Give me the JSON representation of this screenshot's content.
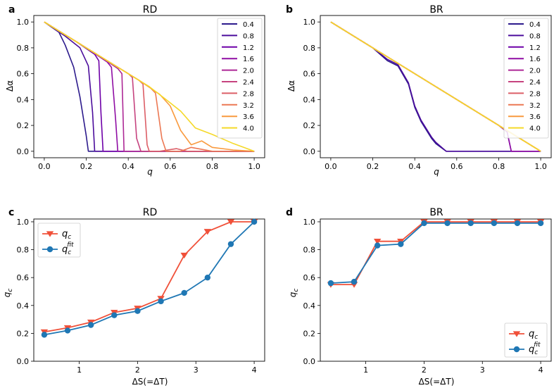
{
  "chart_data": [
    {
      "panel": "a",
      "type": "line",
      "title": "RD",
      "xlabel": "q",
      "ylabel": "Δα",
      "xlim": [
        -0.05,
        1.05
      ],
      "ylim": [
        -0.05,
        1.05
      ],
      "xticks": [
        0.0,
        0.2,
        0.4,
        0.6,
        0.8,
        1.0
      ],
      "xtick_labels": [
        "0.0",
        "0.2",
        "0.4",
        "0.6",
        "0.8",
        "1.0"
      ],
      "yticks": [
        0.0,
        0.2,
        0.4,
        0.6,
        0.8,
        1.0
      ],
      "ytick_labels": [
        "0.0",
        "0.2",
        "0.4",
        "0.6",
        "0.8",
        "1.0"
      ],
      "legend_position": "top-right",
      "series": [
        {
          "name": "0.4",
          "color": "#2c1a8c",
          "x": [
            0,
            0.07,
            0.1,
            0.14,
            0.17,
            0.2,
            0.21,
            0.25,
            0.4,
            1.0
          ],
          "y": [
            1.0,
            0.92,
            0.82,
            0.65,
            0.42,
            0.12,
            0.0,
            0.0,
            0.0,
            0.0
          ]
        },
        {
          "name": "0.8",
          "color": "#4b0c9c",
          "x": [
            0,
            0.1,
            0.17,
            0.21,
            0.23,
            0.24,
            0.3,
            1.0
          ],
          "y": [
            1.0,
            0.89,
            0.8,
            0.66,
            0.3,
            0.0,
            0.0,
            0.0
          ]
        },
        {
          "name": "1.2",
          "color": "#6e00a8",
          "x": [
            0,
            0.15,
            0.24,
            0.26,
            0.27,
            0.28,
            0.35,
            1.0
          ],
          "y": [
            1.0,
            0.85,
            0.75,
            0.7,
            0.3,
            0.0,
            0.0,
            0.0
          ]
        },
        {
          "name": "1.6",
          "color": "#8f0da4",
          "x": [
            0,
            0.2,
            0.3,
            0.32,
            0.34,
            0.35,
            0.4,
            1.0
          ],
          "y": [
            1.0,
            0.8,
            0.69,
            0.65,
            0.24,
            0.0,
            0.0,
            0.0
          ]
        },
        {
          "name": "2.0",
          "color": "#ad2896",
          "x": [
            0,
            0.25,
            0.35,
            0.37,
            0.38,
            0.45,
            1.0
          ],
          "y": [
            1.0,
            0.75,
            0.64,
            0.6,
            0.0,
            0.0,
            0.0
          ]
        },
        {
          "name": "2.4",
          "color": "#c6437f",
          "x": [
            0,
            0.3,
            0.4,
            0.42,
            0.44,
            0.46,
            0.5,
            1.0
          ],
          "y": [
            1.0,
            0.7,
            0.6,
            0.57,
            0.1,
            0.0,
            0.0,
            0.0
          ]
        },
        {
          "name": "2.8",
          "color": "#dc5e66",
          "x": [
            0,
            0.35,
            0.45,
            0.47,
            0.49,
            0.5,
            0.55,
            0.63,
            0.68,
            0.75,
            1.0
          ],
          "y": [
            1.0,
            0.65,
            0.55,
            0.52,
            0.05,
            0.0,
            0.0,
            0.02,
            0.0,
            0.0,
            0.0
          ]
        },
        {
          "name": "3.2",
          "color": "#ec7853",
          "x": [
            0,
            0.4,
            0.5,
            0.53,
            0.56,
            0.58,
            0.65,
            0.7,
            0.8,
            1.0
          ],
          "y": [
            1.0,
            0.6,
            0.5,
            0.45,
            0.1,
            0.0,
            0.0,
            0.03,
            0.0,
            0.0
          ]
        },
        {
          "name": "3.6",
          "color": "#f99a3e",
          "x": [
            0,
            0.45,
            0.55,
            0.6,
            0.65,
            0.7,
            0.75,
            0.8,
            0.9,
            1.0
          ],
          "y": [
            1.0,
            0.55,
            0.44,
            0.35,
            0.16,
            0.05,
            0.08,
            0.03,
            0.01,
            0.0
          ]
        },
        {
          "name": "4.0",
          "color": "#f5d929",
          "x": [
            0,
            0.5,
            0.58,
            0.65,
            0.72,
            0.8,
            0.9,
            1.0
          ],
          "y": [
            1.0,
            0.5,
            0.4,
            0.31,
            0.18,
            0.13,
            0.06,
            0.0
          ]
        }
      ]
    },
    {
      "panel": "b",
      "type": "line",
      "title": "BR",
      "xlabel": "q",
      "ylabel": "Δα",
      "xlim": [
        -0.05,
        1.05
      ],
      "ylim": [
        -0.05,
        1.05
      ],
      "xticks": [
        0.0,
        0.2,
        0.4,
        0.6,
        0.8,
        1.0
      ],
      "xtick_labels": [
        "0.0",
        "0.2",
        "0.4",
        "0.6",
        "0.8",
        "1.0"
      ],
      "yticks": [
        0.0,
        0.2,
        0.4,
        0.6,
        0.8,
        1.0
      ],
      "ytick_labels": [
        "0.0",
        "0.2",
        "0.4",
        "0.6",
        "0.8",
        "1.0"
      ],
      "legend_position": "top-right",
      "series": [
        {
          "name": "0.4",
          "color": "#2c1a8c",
          "x": [
            0,
            0.2,
            0.27,
            0.32,
            0.37,
            0.4,
            0.43,
            0.48,
            0.5,
            0.55,
            0.6,
            1.0
          ],
          "y": [
            1.0,
            0.8,
            0.7,
            0.66,
            0.52,
            0.34,
            0.23,
            0.1,
            0.06,
            0.0,
            0.0,
            0.0
          ]
        },
        {
          "name": "0.8",
          "color": "#4b0c9c",
          "x": [
            0,
            0.2,
            0.27,
            0.32,
            0.37,
            0.4,
            0.43,
            0.48,
            0.5,
            0.55,
            0.6,
            1.0
          ],
          "y": [
            1.0,
            0.8,
            0.71,
            0.67,
            0.53,
            0.35,
            0.24,
            0.11,
            0.07,
            0.0,
            0.0,
            0.0
          ]
        },
        {
          "name": "1.2",
          "color": "#6e00a8",
          "x": [
            0,
            0.8,
            0.84,
            0.86,
            0.9,
            1.0
          ],
          "y": [
            1.0,
            0.2,
            0.15,
            0.0,
            0.0,
            0.0
          ]
        },
        {
          "name": "1.6",
          "color": "#8f0da4",
          "x": [
            0,
            0.8,
            0.84,
            0.86,
            0.9,
            1.0
          ],
          "y": [
            1.0,
            0.2,
            0.15,
            0.0,
            0.0,
            0.0
          ]
        },
        {
          "name": "2.0",
          "color": "#ad2896",
          "x": [
            0,
            0.98,
            1.0
          ],
          "y": [
            1.0,
            0.02,
            0.0
          ]
        },
        {
          "name": "2.4",
          "color": "#c6437f",
          "x": [
            0,
            0.98,
            1.0
          ],
          "y": [
            1.0,
            0.02,
            0.0
          ]
        },
        {
          "name": "2.8",
          "color": "#dc5e66",
          "x": [
            0,
            0.98,
            1.0
          ],
          "y": [
            1.0,
            0.02,
            0.0
          ]
        },
        {
          "name": "3.2",
          "color": "#ec7853",
          "x": [
            0,
            0.98,
            1.0
          ],
          "y": [
            1.0,
            0.02,
            0.0
          ]
        },
        {
          "name": "3.6",
          "color": "#f99a3e",
          "x": [
            0,
            0.98,
            1.0
          ],
          "y": [
            1.0,
            0.02,
            0.0
          ]
        },
        {
          "name": "4.0",
          "color": "#f5d929",
          "x": [
            0,
            0.98,
            1.0
          ],
          "y": [
            1.0,
            0.02,
            0.0
          ]
        }
      ]
    },
    {
      "panel": "c",
      "type": "line",
      "title": "RD",
      "xlabel": "ΔS(=ΔT)",
      "ylabel": "q_c",
      "xlim": [
        0.22,
        4.18
      ],
      "ylim": [
        0.0,
        1.02
      ],
      "xticks": [
        1,
        2,
        3,
        4
      ],
      "xtick_labels": [
        "1",
        "2",
        "3",
        "4"
      ],
      "yticks": [
        0.0,
        0.2,
        0.4,
        0.6,
        0.8,
        1.0
      ],
      "ytick_labels": [
        "0.0",
        "0.2",
        "0.4",
        "0.6",
        "0.8",
        "1.0"
      ],
      "legend_position": "top-left",
      "x": [
        0.4,
        0.8,
        1.2,
        1.6,
        2.0,
        2.4,
        2.8,
        3.2,
        3.6,
        4.0
      ],
      "series": [
        {
          "name": "q_c",
          "marker": "triangle-down",
          "color": "#f05039",
          "values": [
            0.21,
            0.24,
            0.28,
            0.35,
            0.38,
            0.45,
            0.76,
            0.93,
            1.0,
            1.0
          ]
        },
        {
          "name": "q_c^fit",
          "marker": "circle",
          "color": "#1f77b4",
          "values": [
            0.19,
            0.22,
            0.26,
            0.33,
            0.36,
            0.43,
            0.49,
            0.6,
            0.84,
            1.0
          ]
        }
      ]
    },
    {
      "panel": "d",
      "type": "line",
      "title": "BR",
      "xlabel": "ΔS(=ΔT)",
      "ylabel": "q_c",
      "xlim": [
        0.22,
        4.18
      ],
      "ylim": [
        0.0,
        1.02
      ],
      "xticks": [
        1,
        2,
        3,
        4
      ],
      "xtick_labels": [
        "1",
        "2",
        "3",
        "4"
      ],
      "yticks": [
        0.0,
        0.2,
        0.4,
        0.6,
        0.8,
        1.0
      ],
      "ytick_labels": [
        "0.0",
        "0.2",
        "0.4",
        "0.6",
        "0.8",
        "1.0"
      ],
      "legend_position": "bottom-right",
      "x": [
        0.4,
        0.8,
        1.2,
        1.6,
        2.0,
        2.4,
        2.8,
        3.2,
        3.6,
        4.0
      ],
      "series": [
        {
          "name": "q_c",
          "marker": "triangle-down",
          "color": "#f05039",
          "values": [
            0.55,
            0.55,
            0.86,
            0.86,
            1.0,
            1.0,
            1.0,
            1.0,
            1.0,
            1.0
          ]
        },
        {
          "name": "q_c^fit",
          "marker": "circle",
          "color": "#1f77b4",
          "values": [
            0.56,
            0.57,
            0.83,
            0.84,
            0.99,
            0.99,
            0.99,
            0.99,
            0.99,
            0.99
          ]
        }
      ]
    }
  ]
}
